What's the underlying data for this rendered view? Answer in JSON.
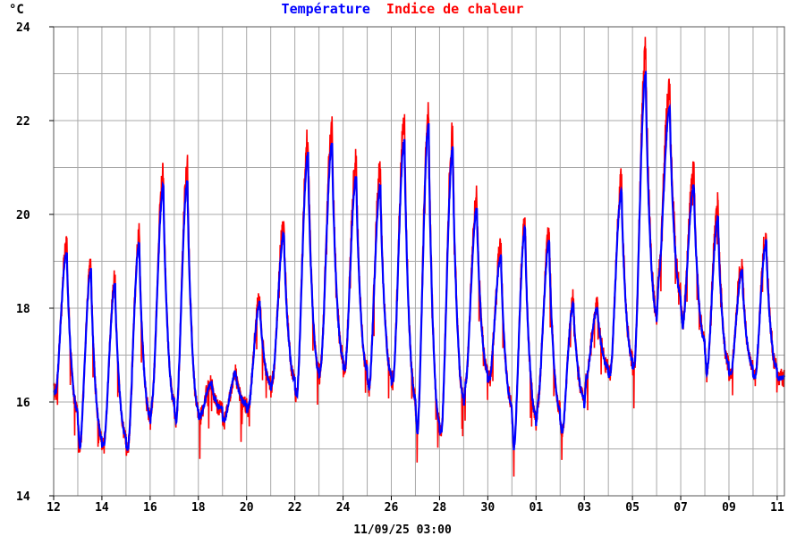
{
  "chart_data": {
    "type": "line",
    "ylabel": "°C",
    "ylim": [
      14,
      24
    ],
    "y_ticks": [
      14,
      16,
      18,
      20,
      22,
      24
    ],
    "x_tick_labels": [
      "12",
      "14",
      "16",
      "18",
      "20",
      "22",
      "24",
      "26",
      "28",
      "30",
      "01",
      "03",
      "05",
      "07",
      "09",
      "11"
    ],
    "footer": "11/09/25 03:00",
    "grid": true,
    "legend_position": "top-center",
    "series": [
      {
        "name": "Température",
        "color": "#0000ff"
      },
      {
        "name": "Indice de chaleur",
        "color": "#ff0000"
      }
    ],
    "days": [
      {
        "min": 16.2,
        "max": 19.2
      },
      {
        "min": 15.0,
        "max": 18.8
      },
      {
        "min": 15.1,
        "max": 18.5
      },
      {
        "min": 15.0,
        "max": 19.4
      },
      {
        "min": 16.0,
        "max": 20.6
      },
      {
        "min": 15.6,
        "max": 20.7
      },
      {
        "min": 15.7,
        "max": 16.4
      },
      {
        "min": 15.6,
        "max": 16.6
      },
      {
        "min": 15.9,
        "max": 18.1
      },
      {
        "min": 16.5,
        "max": 19.6
      },
      {
        "min": 16.1,
        "max": 21.3
      },
      {
        "min": 16.8,
        "max": 21.5
      },
      {
        "min": 16.7,
        "max": 20.8
      },
      {
        "min": 16.3,
        "max": 20.6
      },
      {
        "min": 16.5,
        "max": 21.6
      },
      {
        "min": 15.3,
        "max": 21.9
      },
      {
        "min": 15.4,
        "max": 21.4
      },
      {
        "min": 16.4,
        "max": 20.1
      },
      {
        "min": 16.5,
        "max": 19.1
      },
      {
        "min": 15.0,
        "max": 19.7
      },
      {
        "min": 16.0,
        "max": 19.4
      },
      {
        "min": 15.3,
        "max": 18.1
      },
      {
        "min": 16.5,
        "max": 18.0
      },
      {
        "min": 16.6,
        "max": 20.5
      },
      {
        "min": 16.8,
        "max": 23.0
      },
      {
        "min": 18.6,
        "max": 22.3
      },
      {
        "min": 17.6,
        "max": 20.6
      },
      {
        "min": 16.6,
        "max": 19.9
      },
      {
        "min": 16.6,
        "max": 18.8
      },
      {
        "min": 16.5,
        "max": 19.4
      },
      {
        "min": 16.5,
        "max": 16.6
      }
    ]
  }
}
